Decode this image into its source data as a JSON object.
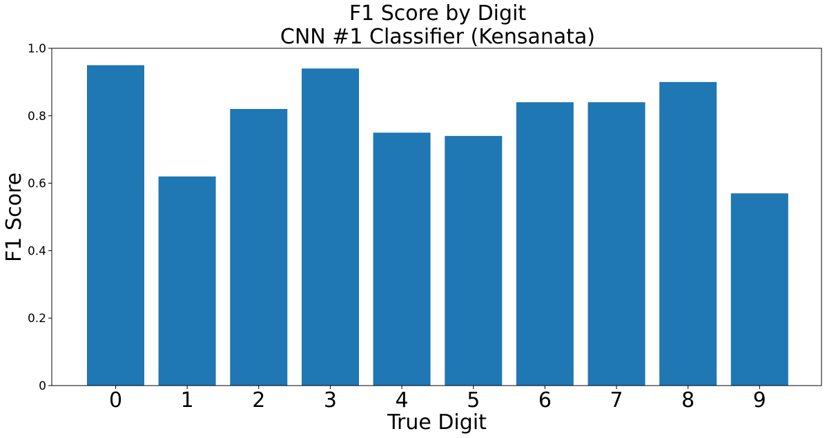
{
  "chart_data": {
    "type": "bar",
    "title": "F1 Score by Digit",
    "subtitle": "CNN #1 Classifier (Kensanata)",
    "xlabel": "True Digit",
    "ylabel": "F1 Score",
    "categories": [
      "0",
      "1",
      "2",
      "3",
      "4",
      "5",
      "6",
      "7",
      "8",
      "9"
    ],
    "values": [
      0.95,
      0.62,
      0.82,
      0.94,
      0.75,
      0.74,
      0.84,
      0.84,
      0.9,
      0.57
    ],
    "ylim": [
      0,
      1.0
    ],
    "yticks": [
      "0",
      "0.2",
      "0.4",
      "0.6",
      "0.8",
      "1.0"
    ],
    "bar_color": "#1f77b4",
    "grid": false,
    "legend": false
  }
}
